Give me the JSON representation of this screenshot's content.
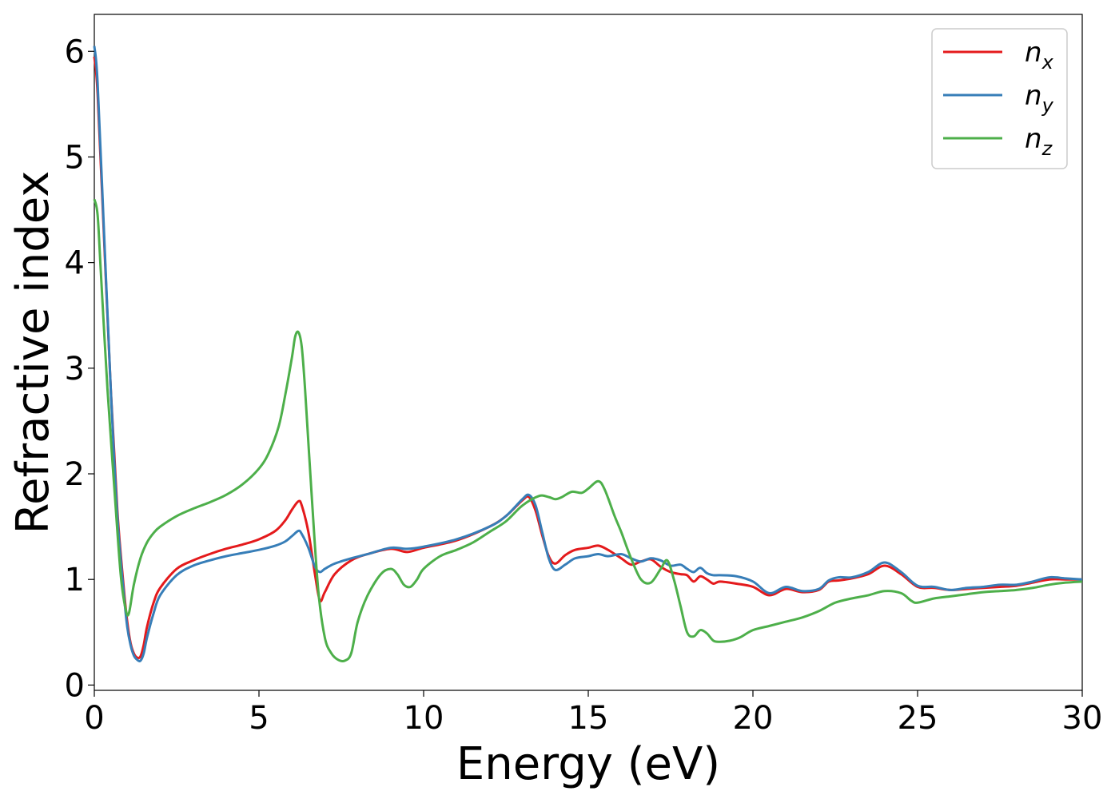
{
  "chart_data": {
    "type": "line",
    "xlabel": "Energy (eV)",
    "ylabel": "Refractive index",
    "xlim": [
      0,
      30
    ],
    "ylim": [
      -0.05,
      6.35
    ],
    "xticks": [
      0,
      5,
      10,
      15,
      20,
      25,
      30
    ],
    "xtick_labels": [
      "0",
      "5",
      "10",
      "15",
      "20",
      "25",
      "30"
    ],
    "yticks": [
      0,
      1,
      2,
      3,
      4,
      5,
      6
    ],
    "ytick_labels": [
      "0",
      "1",
      "2",
      "3",
      "4",
      "5",
      "6"
    ],
    "grid": false,
    "legend_position": "top-right",
    "series": [
      {
        "name": "n",
        "subscript": "x",
        "color": "#e41a1c",
        "x": [
          0,
          0.1,
          0.3,
          0.5,
          0.7,
          0.9,
          1.0,
          1.1,
          1.2,
          1.3,
          1.4,
          1.5,
          1.6,
          1.8,
          2.0,
          2.5,
          3.0,
          3.5,
          4.0,
          4.5,
          5.0,
          5.5,
          5.8,
          6.0,
          6.2,
          6.3,
          6.5,
          6.7,
          6.85,
          7.0,
          7.3,
          7.8,
          8.3,
          9.0,
          9.5,
          10.0,
          11.0,
          12.0,
          12.5,
          13.0,
          13.2,
          13.4,
          13.6,
          13.8,
          14.0,
          14.3,
          14.6,
          15.0,
          15.3,
          15.6,
          16.0,
          16.3,
          16.6,
          16.9,
          17.2,
          17.5,
          17.8,
          18.0,
          18.2,
          18.4,
          18.6,
          18.8,
          19.0,
          19.5,
          20.0,
          20.5,
          21.0,
          21.5,
          22.0,
          22.3,
          22.6,
          23.0,
          23.5,
          24.0,
          24.5,
          25.0,
          25.5,
          26.0,
          26.5,
          27.0,
          27.5,
          28.0,
          28.5,
          29.0,
          29.5,
          30.0
        ],
        "y": [
          5.95,
          5.6,
          4.2,
          2.8,
          1.65,
          0.9,
          0.6,
          0.4,
          0.3,
          0.26,
          0.27,
          0.38,
          0.55,
          0.78,
          0.92,
          1.1,
          1.18,
          1.24,
          1.29,
          1.33,
          1.38,
          1.46,
          1.56,
          1.66,
          1.74,
          1.7,
          1.45,
          1.05,
          0.8,
          0.88,
          1.05,
          1.18,
          1.24,
          1.29,
          1.26,
          1.3,
          1.37,
          1.5,
          1.6,
          1.75,
          1.78,
          1.65,
          1.42,
          1.22,
          1.15,
          1.23,
          1.28,
          1.3,
          1.32,
          1.28,
          1.2,
          1.14,
          1.17,
          1.19,
          1.12,
          1.07,
          1.05,
          1.04,
          0.98,
          1.03,
          1.0,
          0.96,
          0.98,
          0.96,
          0.93,
          0.85,
          0.91,
          0.88,
          0.9,
          0.98,
          0.99,
          1.01,
          1.05,
          1.13,
          1.05,
          0.93,
          0.92,
          0.9,
          0.91,
          0.92,
          0.93,
          0.94,
          0.97,
          1.0,
          1.0,
          1.0
        ]
      },
      {
        "name": "n",
        "subscript": "y",
        "color": "#377eb8",
        "x": [
          0,
          0.1,
          0.3,
          0.5,
          0.7,
          0.9,
          1.0,
          1.1,
          1.2,
          1.3,
          1.4,
          1.5,
          1.6,
          1.8,
          2.0,
          2.5,
          3.0,
          3.5,
          4.0,
          4.5,
          5.0,
          5.5,
          5.8,
          6.0,
          6.2,
          6.3,
          6.5,
          6.7,
          6.85,
          7.0,
          7.3,
          7.8,
          8.3,
          9.0,
          9.5,
          10.0,
          11.0,
          12.0,
          12.5,
          13.0,
          13.2,
          13.4,
          13.6,
          13.8,
          14.0,
          14.3,
          14.6,
          15.0,
          15.3,
          15.6,
          16.0,
          16.3,
          16.6,
          16.9,
          17.2,
          17.5,
          17.8,
          18.0,
          18.2,
          18.4,
          18.6,
          18.8,
          19.0,
          19.5,
          20.0,
          20.5,
          21.0,
          21.5,
          22.0,
          22.3,
          22.6,
          23.0,
          23.5,
          24.0,
          24.5,
          25.0,
          25.5,
          26.0,
          26.5,
          27.0,
          27.5,
          28.0,
          28.5,
          29.0,
          29.5,
          30.0
        ],
        "y": [
          6.05,
          5.7,
          4.25,
          2.8,
          1.6,
          0.85,
          0.55,
          0.38,
          0.28,
          0.24,
          0.23,
          0.3,
          0.45,
          0.68,
          0.85,
          1.04,
          1.13,
          1.18,
          1.22,
          1.25,
          1.28,
          1.32,
          1.36,
          1.41,
          1.46,
          1.43,
          1.3,
          1.12,
          1.07,
          1.1,
          1.15,
          1.2,
          1.24,
          1.3,
          1.29,
          1.31,
          1.38,
          1.5,
          1.6,
          1.76,
          1.8,
          1.7,
          1.45,
          1.2,
          1.09,
          1.14,
          1.2,
          1.22,
          1.24,
          1.22,
          1.24,
          1.2,
          1.17,
          1.2,
          1.18,
          1.13,
          1.14,
          1.1,
          1.07,
          1.11,
          1.06,
          1.04,
          1.04,
          1.03,
          0.98,
          0.87,
          0.93,
          0.89,
          0.91,
          0.99,
          1.02,
          1.02,
          1.07,
          1.16,
          1.07,
          0.94,
          0.93,
          0.9,
          0.92,
          0.93,
          0.95,
          0.95,
          0.98,
          1.02,
          1.01,
          1.0
        ]
      },
      {
        "name": "n",
        "subscript": "z",
        "color": "#4daf4a",
        "x": [
          0,
          0.1,
          0.2,
          0.4,
          0.6,
          0.8,
          0.95,
          1.05,
          1.2,
          1.4,
          1.6,
          1.8,
          2.0,
          2.5,
          3.0,
          3.5,
          4.0,
          4.5,
          5.0,
          5.3,
          5.6,
          5.8,
          6.0,
          6.1,
          6.2,
          6.3,
          6.4,
          6.6,
          6.8,
          7.0,
          7.2,
          7.4,
          7.6,
          7.8,
          8.0,
          8.3,
          8.7,
          9.0,
          9.2,
          9.4,
          9.6,
          9.8,
          10.0,
          10.5,
          11.0,
          11.5,
          12.0,
          12.5,
          13.0,
          13.5,
          13.8,
          14.0,
          14.2,
          14.5,
          14.8,
          15.0,
          15.3,
          15.5,
          15.8,
          16.0,
          16.3,
          16.6,
          16.9,
          17.2,
          17.4,
          17.6,
          17.8,
          18.0,
          18.2,
          18.4,
          18.6,
          18.8,
          19.0,
          19.3,
          19.6,
          20.0,
          20.5,
          21.0,
          21.5,
          22.0,
          22.5,
          23.0,
          23.5,
          24.0,
          24.5,
          24.8,
          25.0,
          25.5,
          26.0,
          26.5,
          27.0,
          27.5,
          28.0,
          28.5,
          29.0,
          29.5,
          30.0
        ],
        "y": [
          4.6,
          4.45,
          3.9,
          2.8,
          1.9,
          1.05,
          0.72,
          0.68,
          0.95,
          1.2,
          1.35,
          1.44,
          1.5,
          1.6,
          1.67,
          1.73,
          1.8,
          1.9,
          2.05,
          2.2,
          2.45,
          2.75,
          3.1,
          3.3,
          3.34,
          3.2,
          2.8,
          1.8,
          0.9,
          0.45,
          0.3,
          0.24,
          0.23,
          0.3,
          0.6,
          0.85,
          1.05,
          1.1,
          1.05,
          0.95,
          0.93,
          1.0,
          1.1,
          1.22,
          1.28,
          1.35,
          1.45,
          1.55,
          1.7,
          1.79,
          1.78,
          1.76,
          1.78,
          1.83,
          1.82,
          1.86,
          1.93,
          1.85,
          1.6,
          1.45,
          1.2,
          1.0,
          0.97,
          1.1,
          1.18,
          1.0,
          0.75,
          0.5,
          0.46,
          0.52,
          0.49,
          0.42,
          0.41,
          0.42,
          0.45,
          0.52,
          0.56,
          0.6,
          0.64,
          0.7,
          0.78,
          0.82,
          0.85,
          0.89,
          0.87,
          0.8,
          0.78,
          0.82,
          0.84,
          0.86,
          0.88,
          0.89,
          0.9,
          0.92,
          0.95,
          0.97,
          0.98
        ]
      }
    ]
  }
}
